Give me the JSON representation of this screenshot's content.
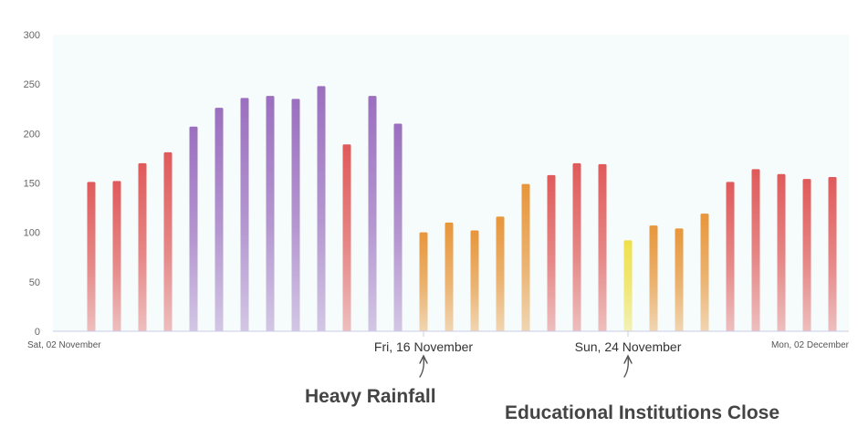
{
  "chart_data": {
    "type": "bar",
    "title": "",
    "xlabel": "",
    "ylabel": "",
    "ylim": [
      0,
      300
    ],
    "yticks": [
      0,
      50,
      100,
      150,
      200,
      250,
      300
    ],
    "grid": false,
    "values": [
      151,
      152,
      170,
      181,
      207,
      226,
      236,
      238,
      235,
      248,
      189,
      238,
      210,
      100,
      110,
      102,
      116,
      149,
      158,
      170,
      169,
      92,
      107,
      104,
      119,
      151,
      164,
      159,
      154,
      156
    ],
    "bar_colors": [
      "#e05a5a",
      "#e05a5a",
      "#e05a5a",
      "#e05a5a",
      "#9b6fbf",
      "#9b6fbf",
      "#9b6fbf",
      "#9b6fbf",
      "#9b6fbf",
      "#9b6fbf",
      "#e05a5a",
      "#9b6fbf",
      "#9b6fbf",
      "#e8963a",
      "#e8963a",
      "#e8963a",
      "#e8963a",
      "#e8963a",
      "#e05a5a",
      "#e05a5a",
      "#e05a5a",
      "#efe04a",
      "#e8963a",
      "#e8963a",
      "#e8963a",
      "#e05a5a",
      "#e05a5a",
      "#e05a5a",
      "#e05a5a",
      "#e05a5a"
    ],
    "x_labels": [
      {
        "text": "Sat, 02 November",
        "index": 0,
        "style": "small",
        "anchor": "start"
      },
      {
        "text": "Fri, 16 November",
        "index": 14,
        "style": "big",
        "anchor": "middle"
      },
      {
        "text": "Sun, 24 November",
        "index": 22,
        "style": "big",
        "anchor": "middle"
      },
      {
        "text": "Mon, 02 December",
        "index": 30,
        "style": "small",
        "anchor": "end"
      }
    ],
    "annotations": [
      {
        "text": "Heavy Rainfall",
        "index": 14
      },
      {
        "text": "Educational Institutions Close",
        "index": 22
      }
    ]
  }
}
